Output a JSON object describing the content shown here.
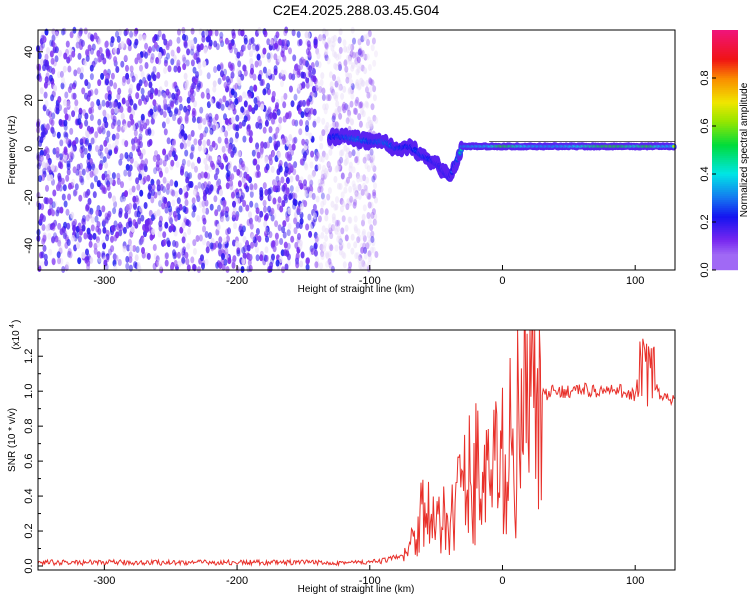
{
  "title": "C2E4.2025.288.03.45.G04",
  "chart_data": [
    {
      "type": "heatmap",
      "title": "C2E4.2025.288.03.45.G04",
      "xlabel": "Height of straight line (km)",
      "ylabel": "Frequency (Hz)",
      "xlim": [
        -350,
        130
      ],
      "ylim": [
        -50,
        49
      ],
      "xticks": [
        -300,
        -200,
        -100,
        0,
        100
      ],
      "yticks": [
        -40,
        -20,
        0,
        20,
        40
      ],
      "noise_region_xmax": -100,
      "ridge": {
        "x": [
          -130,
          -120,
          -110,
          -100,
          -90,
          -80,
          -70,
          -60,
          -50,
          -40,
          -30,
          -20,
          -10,
          0,
          10,
          20,
          30,
          40,
          50,
          60,
          70,
          80,
          90,
          100,
          110,
          120,
          130
        ],
        "frequency": [
          5,
          5,
          4,
          3,
          3,
          0,
          1,
          -3,
          -6,
          -12,
          1,
          1,
          1,
          1,
          1,
          1,
          1,
          1,
          1,
          1,
          1,
          1,
          1,
          1,
          1,
          1,
          1
        ],
        "amplitude": [
          0.35,
          0.4,
          0.45,
          0.4,
          0.45,
          0.4,
          0.35,
          0.4,
          0.3,
          0.3,
          0.5,
          0.55,
          0.6,
          0.9,
          0.75,
          0.6,
          0.55,
          0.55,
          0.6,
          0.7,
          0.8,
          0.9,
          0.85,
          0.7,
          0.9,
          0.6,
          0.6
        ]
      },
      "colorbar": {
        "label": "Normalized spectral amplitude",
        "ticks": [
          "0.0",
          "0.2",
          "0.4",
          "0.6",
          "0.8"
        ],
        "range": [
          0,
          1
        ]
      }
    },
    {
      "type": "line",
      "xlabel": "Height of straight line (km)",
      "ylabel": "SNR (10 * v/v)",
      "yscale_label": "(x10",
      "yscale_exp": "4",
      "xlim": [
        -350,
        130
      ],
      "ylim": [
        0,
        1.35
      ],
      "xticks": [
        -300,
        -200,
        -100,
        0,
        100
      ],
      "yticks": [
        "0.0",
        "0.2",
        "0.4",
        "0.6",
        "0.8",
        "1.0",
        "1.2"
      ],
      "series": [
        {
          "name": "SNR",
          "color": "#e8302a",
          "x": [
            -350,
            -340,
            -330,
            -320,
            -310,
            -300,
            -290,
            -280,
            -270,
            -260,
            -250,
            -240,
            -230,
            -220,
            -210,
            -200,
            -190,
            -180,
            -170,
            -160,
            -150,
            -140,
            -130,
            -120,
            -110,
            -100,
            -90,
            -80,
            -70,
            -60,
            -50,
            -40,
            -30,
            -20,
            -10,
            0,
            10,
            20,
            30,
            40,
            50,
            60,
            70,
            80,
            90,
            100,
            110,
            120,
            130
          ],
          "values": [
            0.02,
            0.02,
            0.02,
            0.02,
            0.02,
            0.02,
            0.02,
            0.02,
            0.02,
            0.02,
            0.02,
            0.02,
            0.02,
            0.02,
            0.02,
            0.02,
            0.02,
            0.02,
            0.02,
            0.02,
            0.02,
            0.02,
            0.02,
            0.02,
            0.02,
            0.02,
            0.03,
            0.05,
            0.1,
            0.35,
            0.2,
            0.3,
            0.45,
            0.55,
            0.5,
            0.6,
            0.75,
            0.9,
            0.97,
            1.0,
            1.0,
            1.01,
            1.0,
            1.0,
            1.0,
            0.98,
            1.1,
            0.96,
            0.95
          ]
        }
      ]
    }
  ]
}
